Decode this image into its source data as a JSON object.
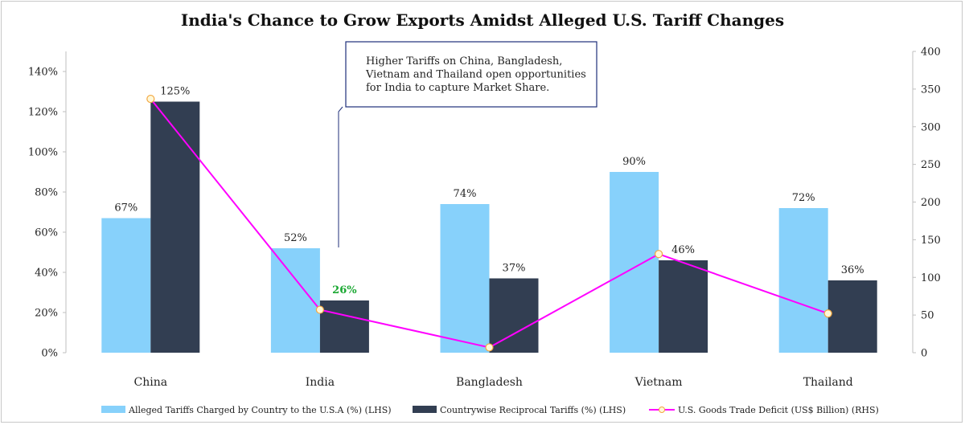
{
  "chart_data": {
    "type": "bar",
    "title": "India's Chance to Grow Exports Amidst Alleged U.S. Tariff Changes",
    "categories": [
      "China",
      "India",
      "Bangladesh",
      "Vietnam",
      "Thailand"
    ],
    "series": [
      {
        "name": "Alleged Tariffs Charged by Country to the U.S.A (%) (LHS)",
        "type": "bar",
        "axis": "left",
        "color": "#87d1fb",
        "values": [
          67,
          52,
          74,
          90,
          72
        ],
        "labels": [
          "67%",
          "52%",
          "74%",
          "90%",
          "72%"
        ]
      },
      {
        "name": "Countrywise Reciprocal Tariffs (%) (LHS)",
        "type": "bar",
        "axis": "left",
        "color": "#323e52",
        "values": [
          125,
          26,
          37,
          46,
          36
        ],
        "labels": [
          "125%",
          "26%",
          "37%",
          "46%",
          "36%"
        ],
        "highlight_index": 1,
        "highlight_color": "#1aa832"
      },
      {
        "name": "U.S. Goods Trade Deficit (US$ Billion) (RHS)",
        "type": "line",
        "axis": "right",
        "color": "#ff00ff",
        "marker_fill": "#fff8d8",
        "marker_stroke": "#f2a640",
        "values": [
          337,
          57,
          7,
          131,
          52
        ]
      }
    ],
    "y_left": {
      "lim": [
        0,
        150
      ],
      "ticks": [
        0,
        20,
        40,
        60,
        80,
        100,
        120,
        140
      ],
      "tick_labels": [
        "0%",
        "20%",
        "40%",
        "60%",
        "80%",
        "100%",
        "120%",
        "140%"
      ]
    },
    "y_right": {
      "lim": [
        0,
        400
      ],
      "ticks": [
        0,
        50,
        100,
        150,
        200,
        250,
        300,
        350,
        400
      ],
      "tick_labels": [
        "0",
        "50",
        "100",
        "150",
        "200",
        "250",
        "300",
        "350",
        "400"
      ]
    },
    "grid": false,
    "legend_position": "bottom",
    "annotation": {
      "lines": [
        "Higher Tariffs on China, Bangladesh,",
        "Vietnam and Thailand open opportunities",
        "for India to capture Market Share."
      ],
      "border_color": "#1f2f7a",
      "target_category": "India"
    }
  }
}
